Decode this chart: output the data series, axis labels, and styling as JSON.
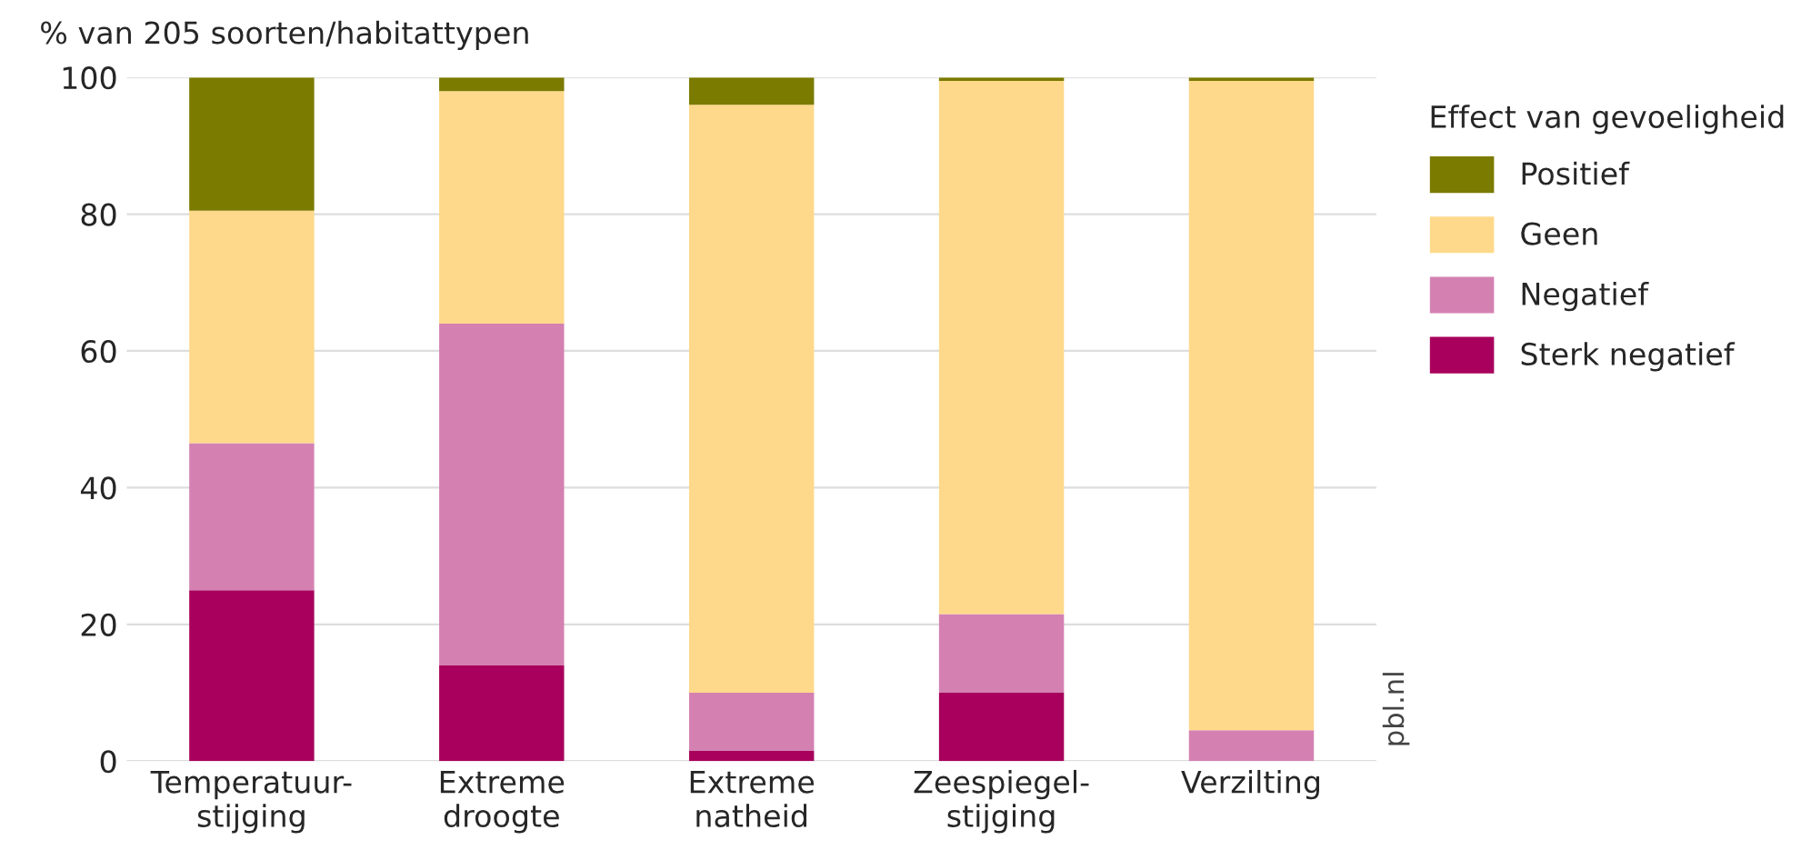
{
  "chart_data": {
    "type": "bar",
    "stacked": true,
    "ylabel": "% van 205 soorten/habitattypen",
    "categories": [
      "Temperatuur-\nstijging",
      "Extreme\ndroogte",
      "Extreme\nnatheid",
      "Zeespiegel-\nstijging",
      "Verzilting"
    ],
    "series": [
      {
        "name": "Sterk negatief",
        "color": "#a8005c",
        "values": [
          25,
          14,
          1.5,
          10,
          0
        ]
      },
      {
        "name": "Negatief",
        "color": "#d481b2",
        "values": [
          21.5,
          50,
          8.5,
          11.5,
          4.5
        ]
      },
      {
        "name": "Geen",
        "color": "#fed98b",
        "values": [
          34,
          34,
          86,
          78,
          95
        ]
      },
      {
        "name": "Positief",
        "color": "#7b7b00",
        "values": [
          19.5,
          2,
          4,
          0.5,
          0.5
        ]
      }
    ],
    "ylim": [
      0,
      100
    ],
    "yticks": [
      0,
      20,
      40,
      60,
      80,
      100
    ],
    "grid": "y",
    "legend": "right",
    "legend_title": "Effect van gevoeligheid",
    "annotations": [
      "pbl.nl"
    ]
  }
}
